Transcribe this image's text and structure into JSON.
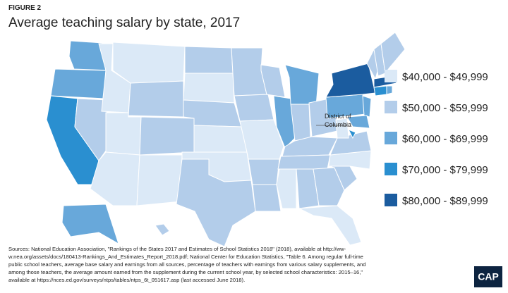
{
  "figure_label": "FIGURE 2",
  "title": "Average teaching salary by state, 2017",
  "legend": [
    {
      "label": "$40,000 - $49,999",
      "color": "#dbe9f7"
    },
    {
      "label": "$50,000 - $59,999",
      "color": "#b3cdea"
    },
    {
      "label": "$60,000 - $69,999",
      "color": "#68a8da"
    },
    {
      "label": "$70,000 - $79,999",
      "color": "#2a8fd0"
    },
    {
      "label": "$80,000 - $89,999",
      "color": "#1b5c9f"
    }
  ],
  "map_label": [
    "District of",
    "Columbia"
  ],
  "sources": [
    "Sources: National Education Association, \"Rankings of the States 2017 and Estimates of School Statistics 2018\" (2018), available at http://ww-",
    "w.nea.org/assets/docs/180413-Rankings_And_Estimates_Report_2018.pdf; National Center for Education Statistics, \"Table 6. Among regular full-time",
    "public school teachers, average base salary and earnings from all sources, percentage of teachers with earnings from various salary supplements, and",
    "among those teachers, the average amount earned from the supplement during the current school year, by selected school characteristics: 2015–16,\"",
    "available at https://nces.ed.gov/surveys/ntps/tables/ntps_6t_051617.asp (last accessed June 2018)."
  ],
  "logo": "CAP"
}
